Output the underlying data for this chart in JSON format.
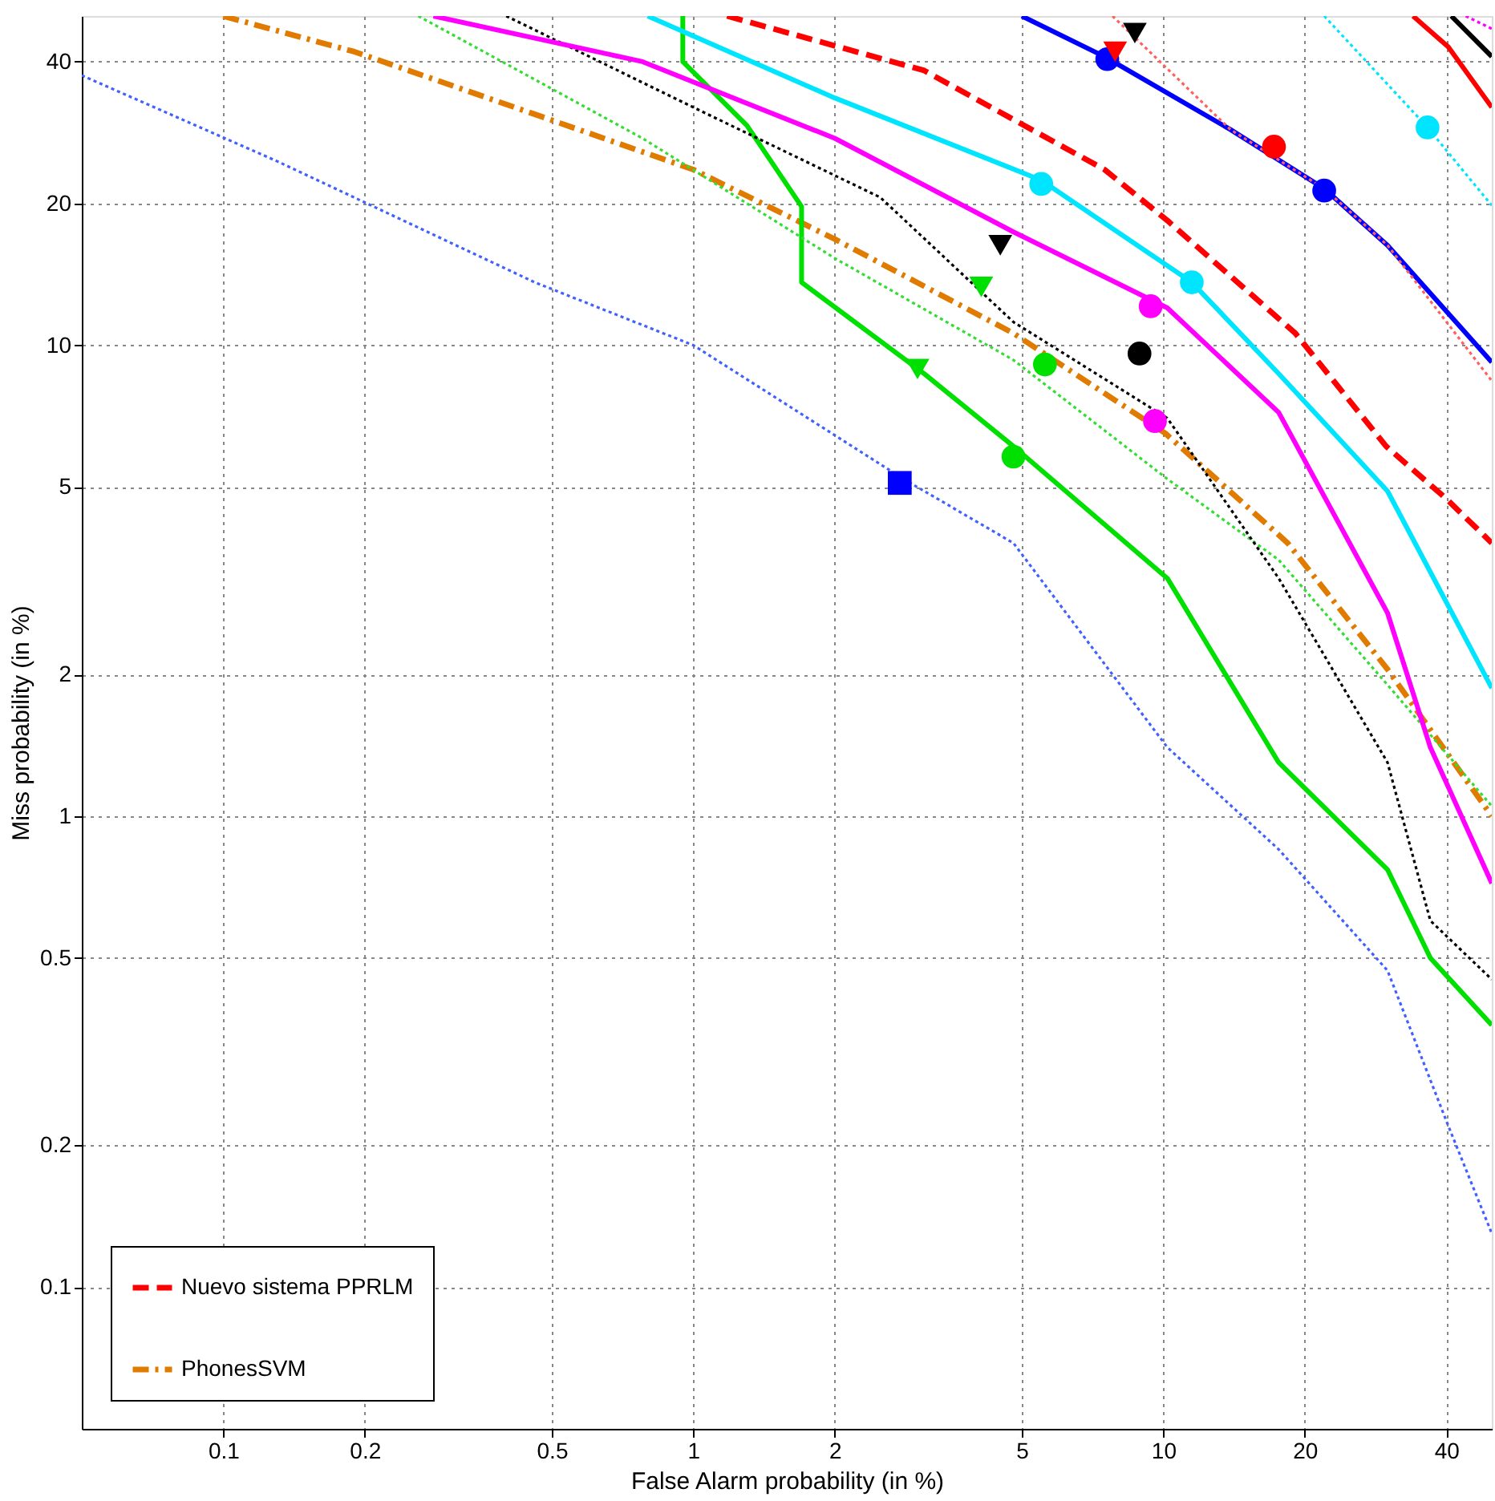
{
  "chart_data": {
    "type": "line",
    "xlabel": "False Alarm probability (in %)",
    "ylabel": "Miss probability (in %)",
    "log": "xy",
    "grid": true,
    "legend": "bottom left",
    "xlim": [
      0.05,
      50
    ],
    "ylim": [
      0.05,
      50
    ],
    "xticks": [
      0.1,
      0.2,
      0.5,
      1,
      2,
      5,
      10,
      20,
      40
    ],
    "yticks": [
      0.1,
      0.2,
      0.5,
      1,
      2,
      5,
      10,
      20,
      40
    ],
    "series": [
      {
        "name": "Nuevo sistema PPRLM",
        "line_style": "dashed",
        "color": "#ff0000",
        "x": [
          1.18,
          3.1,
          7.5,
          10.2,
          19.1,
          29.8,
          40.2,
          50
        ],
        "values": [
          50,
          38.3,
          23.6,
          18.4,
          10.6,
          6.1,
          4.7,
          3.8
        ]
      },
      {
        "name": "PhonesSVM",
        "line_style": "dashdot",
        "color": "#e07b00",
        "x": [
          0.1,
          0.19,
          0.47,
          1.0,
          2,
          4.8,
          10.1,
          18.4,
          30,
          50
        ],
        "values": [
          50,
          42,
          30.7,
          23.6,
          16.8,
          10.6,
          6.5,
          3.8,
          2.05,
          1.0
        ]
      },
      {
        "line_style": "dotted",
        "color": "#4060ff",
        "x": [
          0.05,
          0.13,
          0.46,
          1.0,
          2.8,
          4.8,
          10.2,
          17.6,
          30,
          40.4,
          50
        ],
        "values": [
          37.4,
          24.6,
          13.6,
          10,
          5.2,
          3.8,
          1.4,
          0.85,
          0.47,
          0.22,
          0.13
        ]
      },
      {
        "line_style": "solid",
        "color": "#00e000",
        "x": [
          0.95,
          0.95,
          1.3,
          1.7,
          1.7,
          3.1,
          4.8,
          10.2,
          17.6,
          30,
          37,
          50
        ],
        "values": [
          50,
          40,
          29.3,
          19.7,
          13.6,
          8.7,
          6.1,
          3.2,
          1.3,
          0.77,
          0.5,
          0.36
        ]
      },
      {
        "line_style": "dotted",
        "color": "#33dd33",
        "x": [
          0.26,
          0.78,
          2,
          4.8,
          10.2,
          17.6,
          30,
          50
        ],
        "values": [
          50,
          27.5,
          15.3,
          9.3,
          5.2,
          3.5,
          1.9,
          1.05
        ]
      },
      {
        "line_style": "dotted",
        "color": "#000000",
        "x": [
          0.4,
          1.0,
          2.5,
          4.8,
          10.2,
          17.6,
          30,
          37,
          50
        ],
        "values": [
          50,
          32,
          20.6,
          11.2,
          7.0,
          3.2,
          1.3,
          0.6,
          0.45
        ]
      },
      {
        "line_style": "solid",
        "color": "#ff00ff",
        "x": [
          0.28,
          0.78,
          2,
          4.8,
          10.2,
          17.6,
          30,
          37,
          50
        ],
        "values": [
          50,
          40,
          27.5,
          17.4,
          12,
          7.2,
          2.7,
          1.4,
          0.72
        ]
      },
      {
        "line_style": "solid",
        "color": "#00e5ff",
        "x": [
          0.8,
          2,
          5.5,
          11.5,
          17.6,
          30,
          50
        ],
        "values": [
          50,
          33.5,
          22.4,
          13.6,
          8.7,
          4.9,
          1.87
        ]
      },
      {
        "line_style": "solid",
        "color": "#0000ff",
        "x": [
          5,
          7.5,
          13.9,
          22,
          30,
          50
        ],
        "values": [
          50,
          41,
          28.7,
          21.5,
          16.3,
          9.2
        ]
      },
      {
        "line_style": "dotted",
        "color": "#ff6060",
        "x": [
          7.8,
          13.9,
          22,
          30,
          50
        ],
        "values": [
          50,
          28.7,
          21.5,
          16.3,
          8.4
        ]
      },
      {
        "line_style": "dotted",
        "color": "#00e5ff",
        "x": [
          22,
          36.5,
          50
        ],
        "values": [
          50,
          29,
          19.8
        ]
      },
      {
        "line_style": "solid",
        "color": "#ff0000",
        "x": [
          34,
          40.4,
          50
        ],
        "values": [
          50,
          43,
          32
        ]
      },
      {
        "line_style": "solid",
        "color": "#000000",
        "x": [
          41,
          50
        ],
        "values": [
          50,
          41
        ]
      },
      {
        "line_style": "dotted",
        "color": "#ff00ff",
        "x": [
          44,
          50
        ],
        "values": [
          50,
          47
        ]
      },
      {
        "type": "scatter",
        "marker": "square",
        "color": "#0000ff",
        "x": [
          2.75
        ],
        "values": [
          5.1
        ]
      },
      {
        "type": "scatter",
        "marker": "triangle",
        "color": "#00e000",
        "x": [
          3.0,
          4.1
        ],
        "values": [
          8.9,
          13.3
        ]
      },
      {
        "type": "scatter",
        "marker": "circle",
        "color": "#00e000",
        "x": [
          4.8,
          5.6
        ],
        "values": [
          5.8,
          9.1
        ]
      },
      {
        "type": "scatter",
        "marker": "triangle",
        "color": "#000000",
        "x": [
          4.5,
          8.7
        ],
        "values": [
          16.3,
          46
        ]
      },
      {
        "type": "scatter",
        "marker": "circle",
        "color": "#000000",
        "x": [
          8.9
        ],
        "values": [
          9.6
        ]
      },
      {
        "type": "scatter",
        "marker": "circle",
        "color": "#ff00ff",
        "x": [
          9.4,
          9.6
        ],
        "values": [
          12.1,
          6.9
        ]
      },
      {
        "type": "scatter",
        "marker": "circle",
        "color": "#00e5ff",
        "x": [
          5.5,
          11.5,
          36.5
        ],
        "values": [
          22,
          13.6,
          29
        ]
      },
      {
        "type": "scatter",
        "marker": "circle",
        "color": "#0000ff",
        "x": [
          7.6,
          22
        ],
        "values": [
          40.5,
          21.3
        ]
      },
      {
        "type": "scatter",
        "marker": "triangle",
        "color": "#ff0000",
        "x": [
          7.9
        ],
        "values": [
          42
        ]
      },
      {
        "type": "scatter",
        "marker": "circle",
        "color": "#ff0000",
        "x": [
          17.2
        ],
        "values": [
          26.4
        ]
      }
    ]
  }
}
